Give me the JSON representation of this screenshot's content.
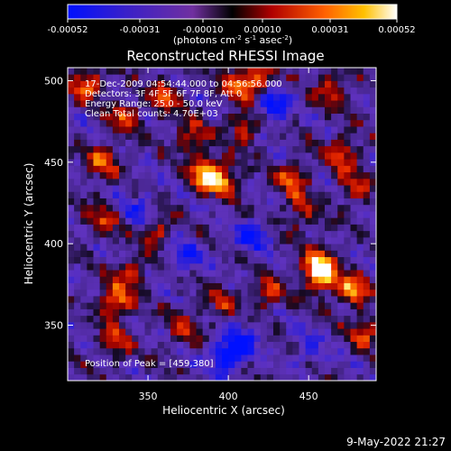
{
  "colorbar": {
    "tick_labels": [
      "-0.00052",
      "-0.00031",
      "-0.00010",
      "0.00010",
      "0.00031",
      "0.00052"
    ],
    "unit_label": "(photons cm",
    "unit_exp1": "-2",
    "unit_mid": " s",
    "unit_exp2": "-1",
    "unit_mid2": " asec",
    "unit_exp3": "-2",
    "unit_end": ")"
  },
  "chart_data": {
    "type": "heatmap",
    "title": "Reconstructed RHESSI Image",
    "xlabel": "Heliocentric X (arcsec)",
    "ylabel": "Heliocentric Y (arcsec)",
    "xlim": [
      300,
      492
    ],
    "ylim": [
      316,
      508
    ],
    "x_ticks": [
      350,
      400,
      450
    ],
    "y_ticks": [
      350,
      400,
      450,
      500
    ],
    "color_range": [
      -0.00052,
      0.00052
    ],
    "annotations": [
      "17-Dec-2009 04:54:44.000 to 04:56:56.000",
      "Detectors: 3F 4F 5F 6F 7F 8F, Att 0",
      "Energy Range: 25.0 - 50.0 keV",
      "Clean    Total counts: 4.70E+03"
    ],
    "peak_label": "Position of Peak = [459,380]",
    "peak": [
      459,
      380
    ],
    "hotspots": [
      {
        "x": 312,
        "y": 498,
        "v": 0.00045
      },
      {
        "x": 322,
        "y": 450,
        "v": 0.0004
      },
      {
        "x": 335,
        "y": 478,
        "v": 0.00035
      },
      {
        "x": 322,
        "y": 415,
        "v": 0.0003
      },
      {
        "x": 330,
        "y": 365,
        "v": 0.00047
      },
      {
        "x": 340,
        "y": 382,
        "v": 0.0003
      },
      {
        "x": 360,
        "y": 490,
        "v": 0.00038
      },
      {
        "x": 355,
        "y": 408,
        "v": 0.00033
      },
      {
        "x": 378,
        "y": 465,
        "v": 0.00036
      },
      {
        "x": 385,
        "y": 442,
        "v": 0.0005
      },
      {
        "x": 396,
        "y": 440,
        "v": 0.00045
      },
      {
        "x": 405,
        "y": 498,
        "v": 0.00035
      },
      {
        "x": 410,
        "y": 472,
        "v": 0.00033
      },
      {
        "x": 418,
        "y": 500,
        "v": 0.0004
      },
      {
        "x": 425,
        "y": 370,
        "v": 0.0003
      },
      {
        "x": 440,
        "y": 440,
        "v": 0.0004
      },
      {
        "x": 445,
        "y": 420,
        "v": 0.0003
      },
      {
        "x": 465,
        "y": 495,
        "v": 0.00036
      },
      {
        "x": 470,
        "y": 455,
        "v": 0.00042
      },
      {
        "x": 480,
        "y": 435,
        "v": 0.0003
      },
      {
        "x": 455,
        "y": 388,
        "v": 0.00046
      },
      {
        "x": 459,
        "y": 380,
        "v": 0.00052
      },
      {
        "x": 478,
        "y": 372,
        "v": 0.00048
      },
      {
        "x": 485,
        "y": 345,
        "v": 0.00032
      },
      {
        "x": 330,
        "y": 340,
        "v": 0.0003
      },
      {
        "x": 372,
        "y": 350,
        "v": 0.00025
      },
      {
        "x": 395,
        "y": 365,
        "v": 0.00025
      }
    ],
    "coldspots": [
      {
        "x": 428,
        "y": 485,
        "v": -0.0004
      },
      {
        "x": 415,
        "y": 405,
        "v": -0.00035
      },
      {
        "x": 398,
        "y": 330,
        "v": -0.00045
      },
      {
        "x": 408,
        "y": 340,
        "v": -0.00035
      },
      {
        "x": 372,
        "y": 392,
        "v": -0.0003
      },
      {
        "x": 345,
        "y": 420,
        "v": -0.00025
      },
      {
        "x": 450,
        "y": 335,
        "v": -0.00025
      }
    ]
  },
  "footer": {
    "timestamp": "9-May-2022 21:27"
  }
}
